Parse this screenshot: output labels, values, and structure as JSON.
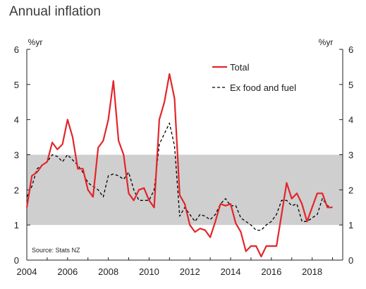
{
  "chart_data": {
    "type": "line",
    "title": "Annual inflation",
    "y_unit_left": "%yr",
    "y_unit_right": "%yr",
    "source": "Source: Stats NZ",
    "xlim": [
      2004,
      2019.5
    ],
    "ylim": [
      0,
      6
    ],
    "x_ticks": [
      2004,
      2006,
      2008,
      2010,
      2012,
      2014,
      2016,
      2018
    ],
    "x_tick_labels": [
      "2004",
      "2006",
      "2008",
      "2010",
      "2012",
      "2014",
      "2016",
      "2018"
    ],
    "y_ticks": [
      0,
      1,
      2,
      3,
      4,
      5,
      6
    ],
    "y_tick_labels": [
      "0",
      "1",
      "2",
      "3",
      "4",
      "5",
      "6"
    ],
    "target_band": [
      1,
      3
    ],
    "grid": false,
    "legend_position": "top-right",
    "colors": {
      "band": "#cfcfcf",
      "total": "#e3262b",
      "ex_food_fuel": "#000000"
    },
    "series": [
      {
        "name": "Total",
        "style": "solid",
        "x": [
          2004.0,
          2004.25,
          2004.5,
          2004.75,
          2005.0,
          2005.25,
          2005.5,
          2005.75,
          2006.0,
          2006.25,
          2006.5,
          2006.75,
          2007.0,
          2007.25,
          2007.5,
          2007.75,
          2008.0,
          2008.25,
          2008.5,
          2008.75,
          2009.0,
          2009.25,
          2009.5,
          2009.75,
          2010.0,
          2010.25,
          2010.5,
          2010.75,
          2011.0,
          2011.25,
          2011.5,
          2011.75,
          2012.0,
          2012.25,
          2012.5,
          2012.75,
          2013.0,
          2013.25,
          2013.5,
          2013.75,
          2014.0,
          2014.25,
          2014.5,
          2014.75,
          2015.0,
          2015.25,
          2015.5,
          2015.75,
          2016.0,
          2016.25,
          2016.5,
          2016.75,
          2017.0,
          2017.25,
          2017.5,
          2017.75,
          2018.0,
          2018.25,
          2018.5,
          2018.75,
          2019.0
        ],
        "values": [
          1.5,
          2.4,
          2.5,
          2.7,
          2.8,
          3.35,
          3.15,
          3.3,
          4.0,
          3.5,
          2.6,
          2.6,
          2.0,
          1.8,
          3.2,
          3.4,
          4.0,
          5.1,
          3.4,
          3.0,
          1.9,
          1.7,
          2.0,
          2.05,
          1.7,
          1.5,
          4.0,
          4.5,
          5.3,
          4.6,
          1.85,
          1.6,
          1.0,
          0.8,
          0.9,
          0.85,
          0.65,
          1.1,
          1.6,
          1.55,
          1.6,
          1.05,
          0.8,
          0.25,
          0.4,
          0.4,
          0.1,
          0.4,
          0.4,
          0.4,
          1.3,
          2.2,
          1.75,
          1.9,
          1.6,
          1.1,
          1.5,
          1.9,
          1.9,
          1.5,
          1.5
        ]
      },
      {
        "name": "Ex food and fuel",
        "style": "dashed",
        "x": [
          2004.0,
          2004.25,
          2004.5,
          2004.75,
          2005.0,
          2005.25,
          2005.5,
          2005.75,
          2006.0,
          2006.25,
          2006.5,
          2006.75,
          2007.0,
          2007.25,
          2007.5,
          2007.75,
          2008.0,
          2008.25,
          2008.5,
          2008.75,
          2009.0,
          2009.25,
          2009.5,
          2009.75,
          2010.0,
          2010.25,
          2010.5,
          2010.75,
          2011.0,
          2011.25,
          2011.5,
          2011.75,
          2012.0,
          2012.25,
          2012.5,
          2012.75,
          2013.0,
          2013.25,
          2013.5,
          2013.75,
          2014.0,
          2014.25,
          2014.5,
          2014.75,
          2015.0,
          2015.25,
          2015.5,
          2015.75,
          2016.0,
          2016.25,
          2016.5,
          2016.75,
          2017.0,
          2017.25,
          2017.5,
          2017.75,
          2018.0,
          2018.25,
          2018.5,
          2018.75,
          2019.0
        ],
        "values": [
          1.8,
          2.1,
          2.6,
          2.7,
          2.8,
          3.0,
          2.95,
          2.8,
          3.0,
          2.85,
          2.7,
          2.5,
          2.2,
          2.1,
          2.0,
          1.8,
          2.4,
          2.45,
          2.4,
          2.3,
          2.5,
          2.0,
          1.7,
          1.7,
          1.7,
          2.0,
          3.3,
          3.6,
          3.9,
          3.25,
          1.25,
          1.5,
          1.3,
          1.1,
          1.3,
          1.25,
          1.15,
          1.3,
          1.6,
          1.75,
          1.55,
          1.55,
          1.2,
          1.1,
          1.0,
          0.85,
          0.85,
          1.0,
          1.1,
          1.3,
          1.7,
          1.7,
          1.55,
          1.6,
          1.1,
          1.1,
          1.2,
          1.3,
          1.75,
          1.55,
          1.5
        ]
      }
    ]
  }
}
